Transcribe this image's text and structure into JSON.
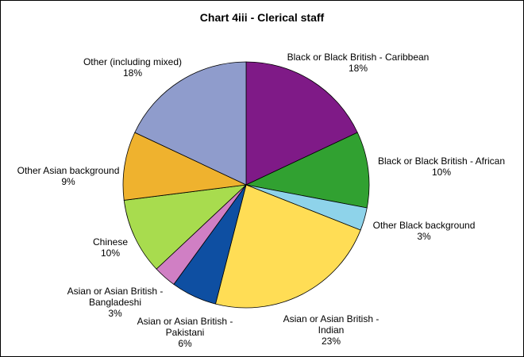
{
  "chart_data": {
    "type": "pie",
    "title": "Chart 4iii - Clerical staff",
    "slices": [
      {
        "label": "Black or Black British - Caribbean",
        "label_lines": [
          "Black or Black British - Caribbean"
        ],
        "value": 18,
        "value_label": "18%",
        "color": "#7F1A87"
      },
      {
        "label": "Black or Black British - African",
        "label_lines": [
          "Black or Black British - African"
        ],
        "value": 10,
        "value_label": "10%",
        "color": "#31A131"
      },
      {
        "label": "Other Black background",
        "label_lines": [
          "Other Black background"
        ],
        "value": 3,
        "value_label": "3%",
        "color": "#8ED3EA"
      },
      {
        "label": "Asian or Asian British - Indian",
        "label_lines": [
          "Asian or Asian British -",
          "Indian"
        ],
        "value": 23,
        "value_label": "23%",
        "color": "#FFDD55"
      },
      {
        "label": "Asian or Asian British - Pakistani",
        "label_lines": [
          "Asian or Asian British -",
          "Pakistani"
        ],
        "value": 6,
        "value_label": "6%",
        "color": "#0E4FA2"
      },
      {
        "label": "Asian or Asian British - Bangladeshi",
        "label_lines": [
          "Asian or Asian British -",
          "Bangladeshi"
        ],
        "value": 3,
        "value_label": "3%",
        "color": "#D07FC4"
      },
      {
        "label": "Chinese",
        "label_lines": [
          "Chinese"
        ],
        "value": 10,
        "value_label": "10%",
        "color": "#A8DC4E"
      },
      {
        "label": "Other Asian background",
        "label_lines": [
          "Other Asian background"
        ],
        "value": 9,
        "value_label": "9%",
        "color": "#EFB22E"
      },
      {
        "label": "Other (including mixed)",
        "label_lines": [
          "Other (including mixed)"
        ],
        "value": 18,
        "value_label": "18%",
        "color": "#8F9CCC"
      }
    ]
  }
}
